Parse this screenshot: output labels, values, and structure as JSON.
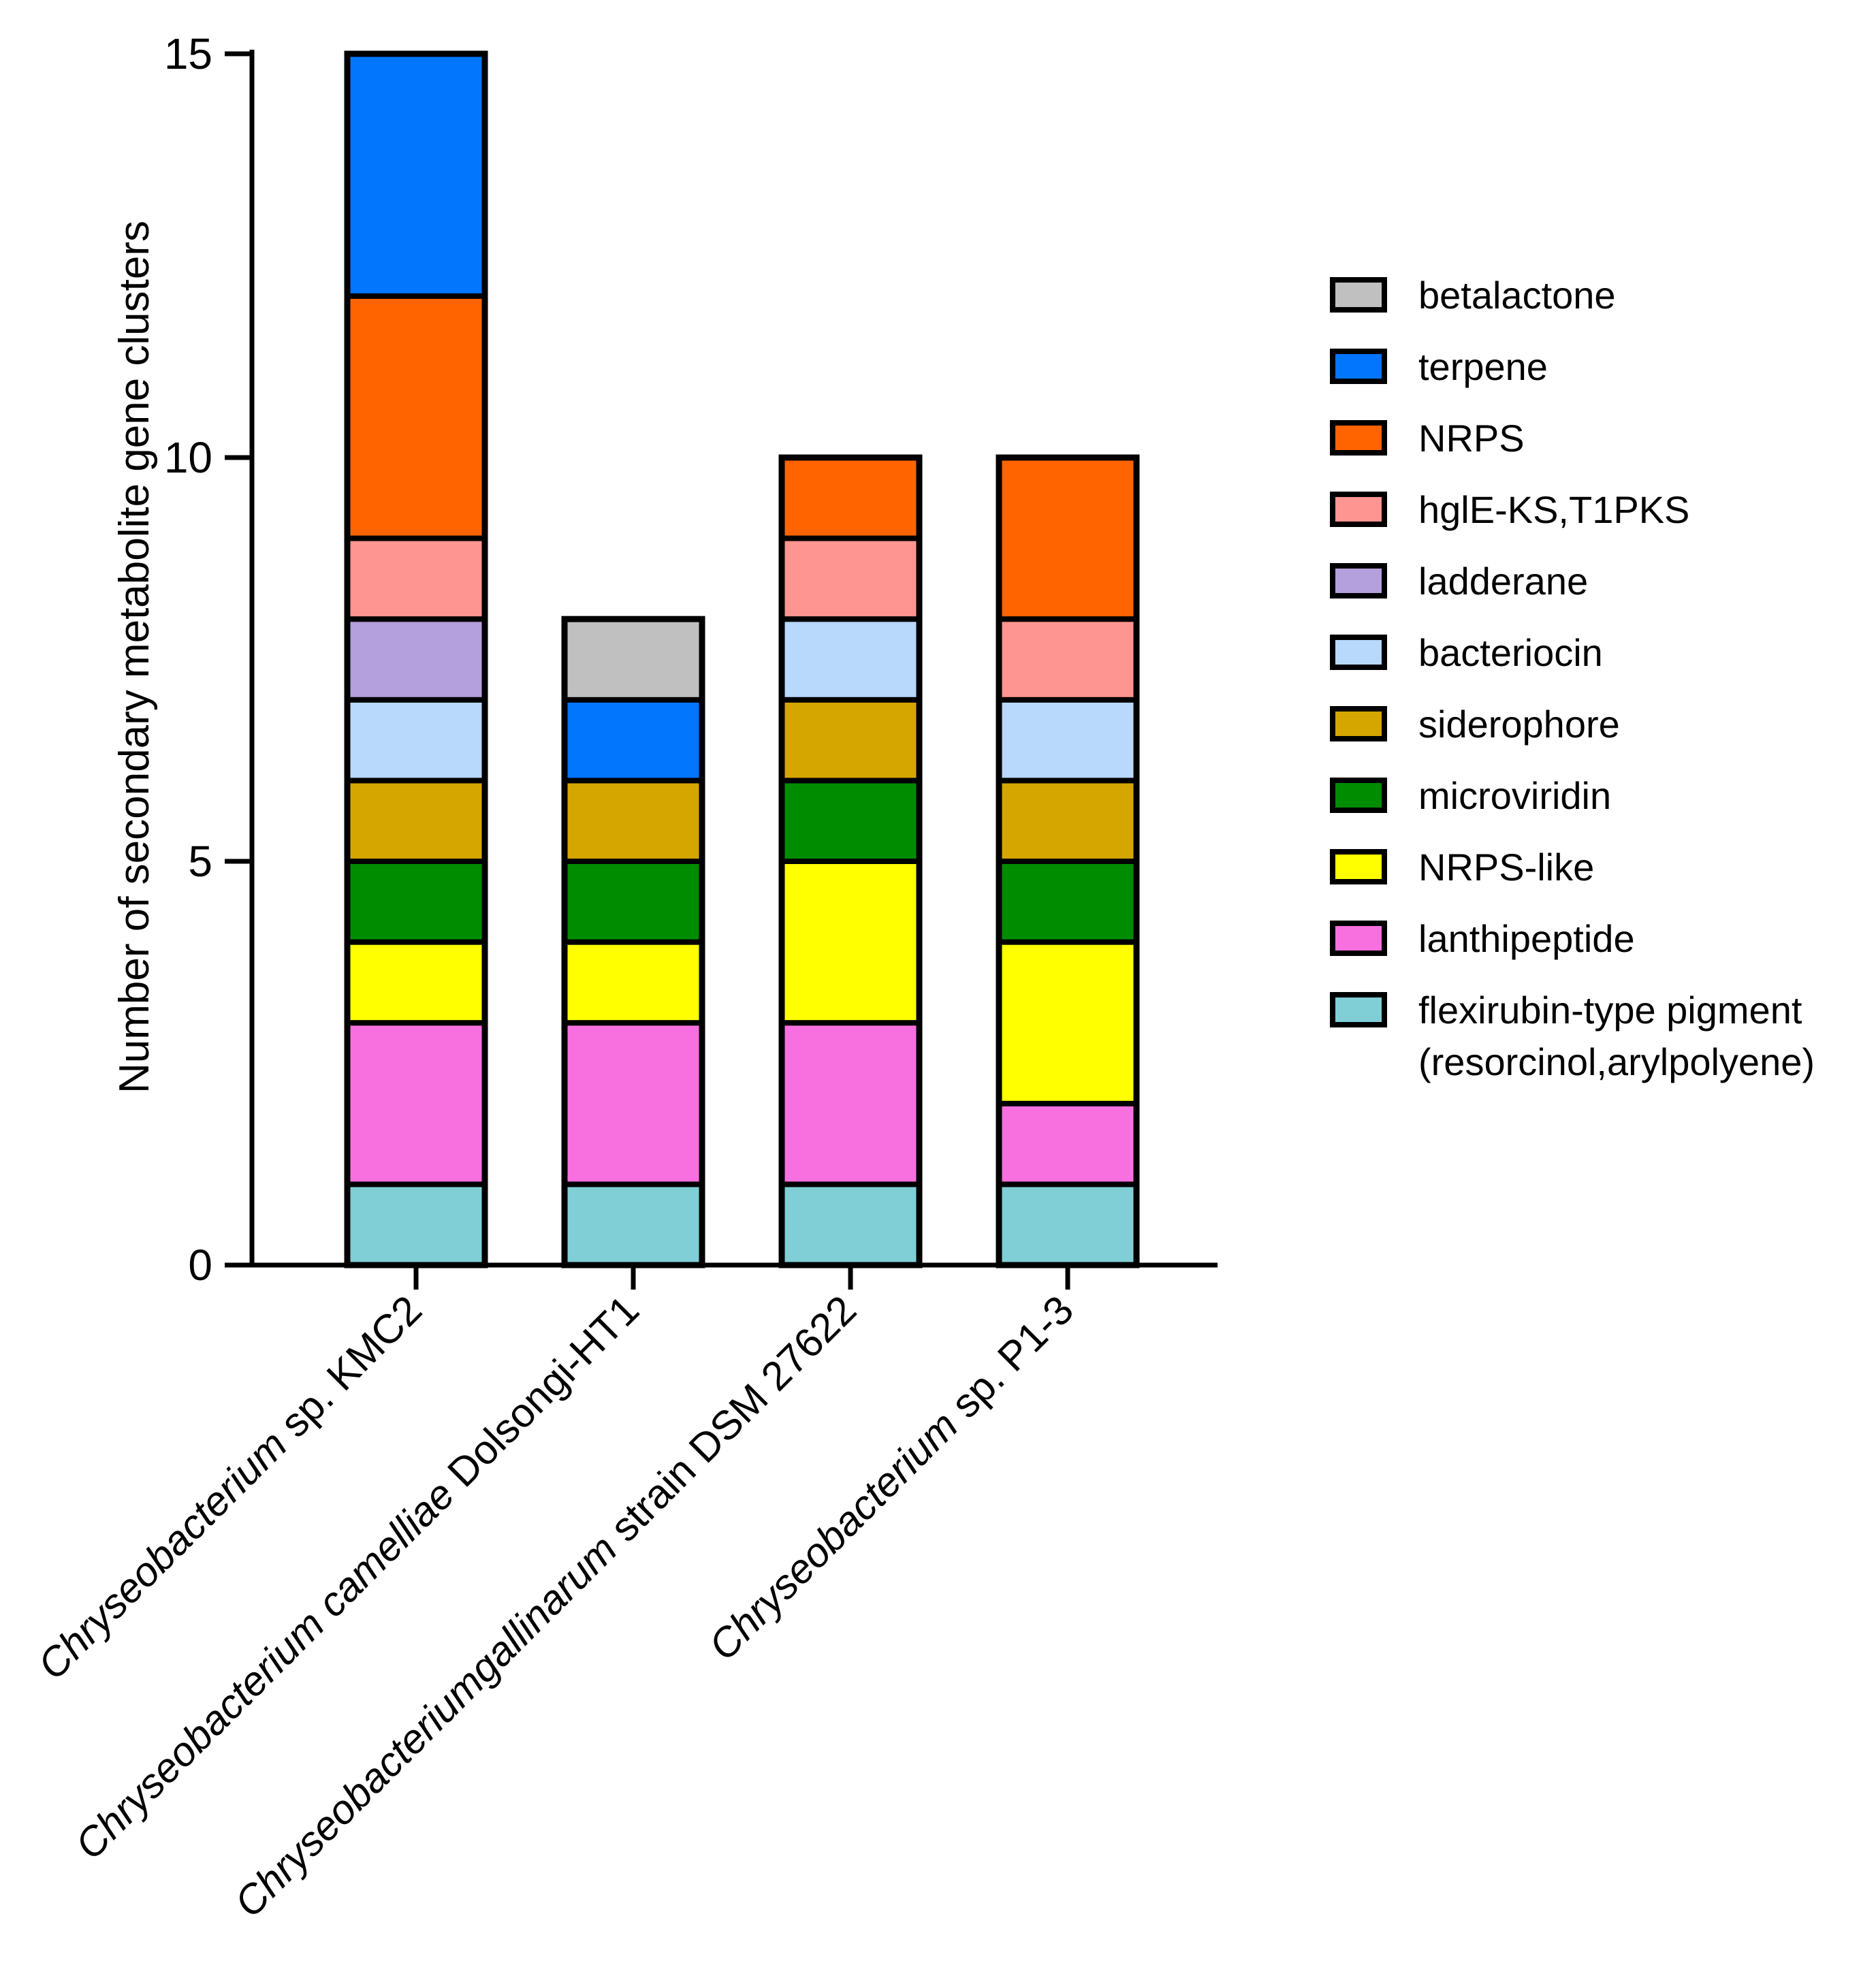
{
  "chart_data": {
    "type": "bar",
    "stacked": true,
    "title": "",
    "xlabel": "",
    "ylabel": "Number of secondary metabolite gene clusters",
    "ylim": [
      0,
      15
    ],
    "yticks": [
      0,
      5,
      10,
      15
    ],
    "grid": false,
    "legend_position": "right",
    "categories": [
      {
        "italic": "Chryseobacterium",
        "rest": " sp. KMC2"
      },
      {
        "italic": "Chryseobacterium camelliae",
        "rest": " Dolsongi-HT1"
      },
      {
        "italic": "Chryseobacteriumgallinarum",
        "rest": " strain DSM 27622"
      },
      {
        "italic": "Chryseobacterium",
        "rest": " sp. P1-3"
      }
    ],
    "series": [
      {
        "name": "flexirubin-type pigment",
        "name_line2": "(resorcinol,arylpolyene)",
        "color": "#80cfd6",
        "values": [
          1,
          1,
          1,
          1
        ]
      },
      {
        "name": "lanthipeptide",
        "color": "#f870e0",
        "values": [
          2,
          2,
          2,
          1
        ]
      },
      {
        "name": "NRPS-like",
        "color": "#ffff00",
        "values": [
          1,
          1,
          2,
          2
        ]
      },
      {
        "name": "microviridin",
        "color": "#008c00",
        "values": [
          1,
          1,
          1,
          1
        ]
      },
      {
        "name": "siderophore",
        "color": "#d6a600",
        "values": [
          1,
          1,
          1,
          1
        ]
      },
      {
        "name": "bacteriocin",
        "color": "#b8d8fc",
        "values": [
          1,
          0,
          1,
          1
        ]
      },
      {
        "name": "ladderane",
        "color": "#b4a0dc",
        "values": [
          1,
          0,
          0,
          0
        ]
      },
      {
        "name": "hglE-KS,T1PKS",
        "color": "#ff9590",
        "values": [
          1,
          0,
          1,
          1
        ]
      },
      {
        "name": "NRPS",
        "color": "#ff6400",
        "values": [
          3,
          0,
          1,
          2
        ]
      },
      {
        "name": "terpene",
        "color": "#0276fd",
        "values": [
          3,
          1,
          0,
          0
        ]
      },
      {
        "name": "betalactone",
        "color": "#c0c0c0",
        "values": [
          0,
          1,
          0,
          0
        ]
      }
    ]
  }
}
